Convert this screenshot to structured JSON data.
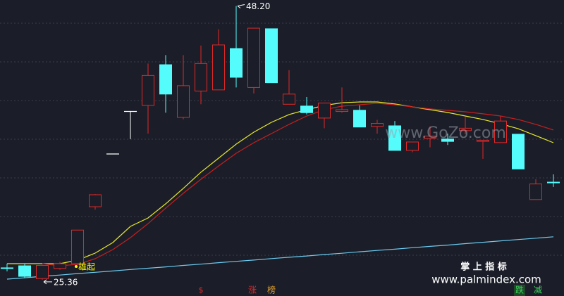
{
  "chart_data": {
    "type": "candlestick",
    "ylim": [
      24.0,
      48.7
    ],
    "up_color": "#e02828",
    "down_color": "#54fcfc",
    "doji_color": "#ffffff",
    "open": [
      26.35,
      26.52,
      25.45,
      26.3,
      26.7,
      31.45,
      35.85,
      39.4,
      39.9,
      43.3,
      38.9,
      41.1,
      41.2,
      44.65,
      41.4,
      46.3,
      40.0,
      39.85,
      38.85,
      39.4,
      39.5,
      38.15,
      38.2,
      36.15,
      37.15,
      37.1,
      37.8,
      36.9,
      36.8,
      37.5,
      32.05,
      33.5
    ],
    "high": [
      26.7,
      26.7,
      26.6,
      26.85,
      29.5,
      32.5,
      35.85,
      39.4,
      43.4,
      44.1,
      44.1,
      44.9,
      46.25,
      48.2,
      46.35,
      46.3,
      42.85,
      40.6,
      40.1,
      41.4,
      39.9,
      38.7,
      38.6,
      36.85,
      38.15,
      37.55,
      39.0,
      37.0,
      39.0,
      37.5,
      33.75,
      34.15
    ],
    "low": [
      26.05,
      25.5,
      25.36,
      26.2,
      26.6,
      31.2,
      35.85,
      37.1,
      37.55,
      39.3,
      38.75,
      40.0,
      41.2,
      41.4,
      40.9,
      41.8,
      40.0,
      39.15,
      38.0,
      39.3,
      38.1,
      37.55,
      36.15,
      36.0,
      36.4,
      36.6,
      37.5,
      35.45,
      36.8,
      34.6,
      32.05,
      33.1
    ],
    "close": [
      26.33,
      25.64,
      26.55,
      26.7,
      29.5,
      32.45,
      35.85,
      39.4,
      42.4,
      40.85,
      41.55,
      43.4,
      44.95,
      42.25,
      46.35,
      41.8,
      40.85,
      39.3,
      40.1,
      39.55,
      38.1,
      38.4,
      36.15,
      36.85,
      37.35,
      36.9,
      38.0,
      37.0,
      38.6,
      34.6,
      33.35,
      33.45
    ],
    "lines": [
      {
        "color": "#e8e82a",
        "values": [
          26.7,
          26.7,
          26.7,
          26.7,
          26.99,
          27.58,
          28.46,
          29.81,
          30.51,
          31.69,
          32.98,
          34.33,
          35.5,
          36.67,
          37.67,
          38.49,
          39.14,
          39.55,
          39.9,
          40.13,
          40.19,
          40.19,
          40.02,
          39.78,
          39.55,
          39.31,
          39.02,
          38.73,
          38.37,
          37.96,
          37.38,
          36.79
        ]
      },
      {
        "color": "#c81e1e",
        "values": [
          null,
          null,
          26.7,
          26.52,
          26.64,
          27.11,
          27.87,
          28.87,
          30.04,
          31.33,
          32.57,
          33.74,
          34.85,
          35.91,
          36.79,
          37.55,
          38.32,
          39.02,
          39.55,
          39.84,
          39.96,
          40.08,
          39.96,
          39.78,
          39.61,
          39.49,
          39.37,
          39.2,
          39.02,
          38.73,
          38.32,
          37.85
        ]
      },
      {
        "color": "#6ccaf0",
        "values": [
          25.41,
          25.52,
          25.64,
          25.75,
          25.87,
          25.98,
          26.09,
          26.21,
          26.32,
          26.43,
          26.55,
          26.66,
          26.78,
          26.89,
          27.0,
          27.12,
          27.23,
          27.34,
          27.46,
          27.57,
          27.69,
          27.8,
          27.91,
          28.03,
          28.14,
          28.25,
          28.37,
          28.48,
          28.6,
          28.71,
          28.82,
          28.94
        ]
      }
    ],
    "max_label": "48.20",
    "min_label": "25.36",
    "signal": "雄起"
  },
  "overlay": {
    "watermark": "www.GoZo.com",
    "brand": "掌 上 指 标",
    "site": "www.palmindex.com",
    "buttons": [
      "$",
      "涨",
      "榜",
      "跌",
      "减"
    ]
  }
}
